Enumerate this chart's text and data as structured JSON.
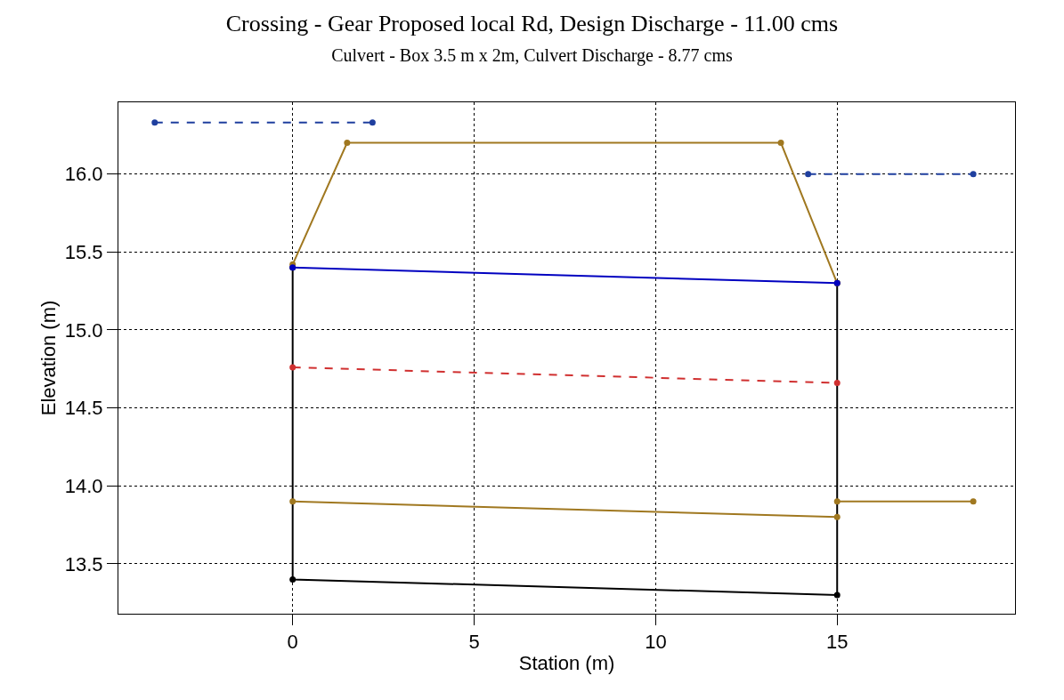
{
  "chart_data": {
    "type": "line",
    "title": "Crossing - Gear Proposed local Rd, Design Discharge - 11.00 cms",
    "subtitle": "Culvert - Box 3.5 m x 2m, Culvert Discharge - 8.77 cms",
    "xlabel": "Station (m)",
    "ylabel": "Elevation (m)",
    "series": [
      {
        "color": "#000000",
        "line_style": "solid",
        "x": [
          0,
          0,
          15,
          15
        ],
        "values": [
          15.4,
          13.4,
          13.3,
          15.3
        ]
      },
      {
        "color": "#1f3f9f",
        "line_style": "dashed",
        "x": [
          -3.8,
          2.2
        ],
        "values": [
          16.33,
          16.33
        ]
      },
      {
        "color": "#1f3f9f",
        "line_style": "dashed",
        "x": [
          14.2,
          18.75
        ],
        "values": [
          16.0,
          16.0
        ]
      },
      {
        "color": "#a07820",
        "line_style": "solid",
        "x": [
          0,
          1.5,
          13.45,
          15
        ],
        "values": [
          15.42,
          16.2,
          16.2,
          15.3
        ]
      },
      {
        "color": "#0000c0",
        "line_style": "solid",
        "x": [
          0,
          15
        ],
        "values": [
          15.4,
          15.3
        ]
      },
      {
        "color": "#d03030",
        "line_style": "dashed",
        "x": [
          0,
          15
        ],
        "values": [
          14.76,
          14.66
        ]
      },
      {
        "color": "#a07820",
        "line_style": "solid",
        "x": [
          0,
          15
        ],
        "values": [
          13.9,
          13.8
        ]
      },
      {
        "color": "#a07820",
        "line_style": "solid",
        "x": [
          15,
          18.75
        ],
        "values": [
          13.9,
          13.9
        ]
      }
    ],
    "xlim": [
      -4.8,
      19.9
    ],
    "ylim": [
      13.18,
      16.46
    ],
    "xticks": [
      0,
      5,
      10,
      15
    ],
    "yticks": [
      {
        "value": 13.5,
        "label": "13.5"
      },
      {
        "value": 14,
        "label": "14.0"
      },
      {
        "value": 14.5,
        "label": "14.5"
      },
      {
        "value": 15,
        "label": "15.0"
      },
      {
        "value": 15.5,
        "label": "15.5"
      },
      {
        "value": 16,
        "label": "16.0"
      }
    ],
    "grid": true,
    "marker": "circle"
  }
}
